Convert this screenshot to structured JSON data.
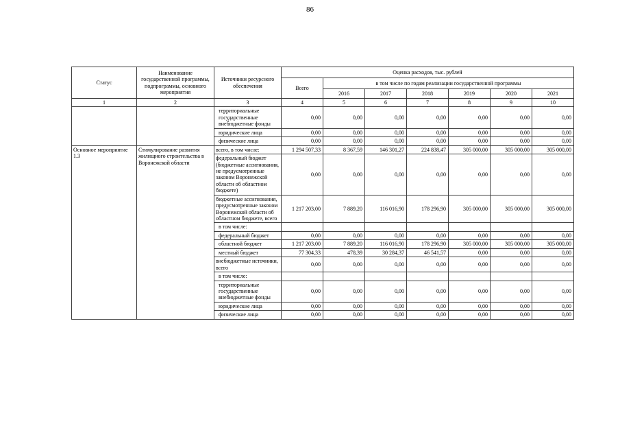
{
  "page": {
    "number": "86"
  },
  "table": {
    "header": {
      "status": "Статус",
      "name": "Наименование государственной программы, подпрограммы, основного мероприятия",
      "sources": "Источники ресурсного обеспечения",
      "expenses": "Оценка расходов, тыс. рублей",
      "total": "Всего",
      "by_years": "в том числе по годам реализации государственной программы",
      "years": [
        "2016",
        "2017",
        "2018",
        "2019",
        "2020",
        "2021"
      ],
      "col_numbers": [
        "1",
        "2",
        "3",
        "4",
        "5",
        "6",
        "7",
        "8",
        "9",
        "10"
      ]
    },
    "rows": [
      {
        "lead": {
          "status": "",
          "name": "",
          "rowspan": 3
        },
        "source": "территориальные государственные внебюджетные фонды",
        "indent": 1,
        "values": [
          "0,00",
          "0,00",
          "0,00",
          "0,00",
          "0,00",
          "0,00",
          "0,00"
        ]
      },
      {
        "source": "юридические лица",
        "indent": 1,
        "values": [
          "0,00",
          "0,00",
          "0,00",
          "0,00",
          "0,00",
          "0,00",
          "0,00"
        ]
      },
      {
        "source": "физические лица",
        "indent": 1,
        "values": [
          "0,00",
          "0,00",
          "0,00",
          "0,00",
          "0,00",
          "0,00",
          "0,00"
        ]
      },
      {
        "lead": {
          "status": "Основное мероприятие 1.3",
          "name": "Стимулирование развития жилищного строительства в Воронежской области",
          "rowspan": 12
        },
        "source": "всего, в том числе:",
        "indent": 0,
        "values": [
          "1 294 507,33",
          "8 367,59",
          "146 301,27",
          "224 838,47",
          "305 000,00",
          "305 000,00",
          "305 000,00"
        ]
      },
      {
        "source": "федеральный бюджет (бюджетные ассигнования, не предусмотренные законом Воронежской области об областном бюджете)",
        "indent": 0,
        "values": [
          "0,00",
          "0,00",
          "0,00",
          "0,00",
          "0,00",
          "0,00",
          "0,00"
        ]
      },
      {
        "source": "бюджетные ассигнования, предусмотренные законом Воронежской области об областном бюджете, всего",
        "indent": 0,
        "values": [
          "1 217 203,00",
          "7 889,20",
          "116 016,90",
          "178 296,90",
          "305 000,00",
          "305 000,00",
          "305 000,00"
        ]
      },
      {
        "source": "в том числе:",
        "indent": 1,
        "values": [
          "",
          "",
          "",
          "",
          "",
          "",
          ""
        ]
      },
      {
        "source": "федеральный бюджет",
        "indent": 1,
        "values": [
          "0,00",
          "0,00",
          "0,00",
          "0,00",
          "0,00",
          "0,00",
          "0,00"
        ]
      },
      {
        "source": "областной бюджет",
        "indent": 1,
        "values": [
          "1 217 203,00",
          "7 889,20",
          "116 016,90",
          "178 296,90",
          "305 000,00",
          "305 000,00",
          "305 000,00"
        ]
      },
      {
        "source": "местный бюджет",
        "indent": 1,
        "values": [
          "77 304,33",
          "478,39",
          "30 284,37",
          "46 541,57",
          "0,00",
          "0,00",
          "0,00"
        ]
      },
      {
        "source": "внебюджетные источники, всего",
        "indent": 0,
        "values": [
          "0,00",
          "0,00",
          "0,00",
          "0,00",
          "0,00",
          "0,00",
          "0,00"
        ]
      },
      {
        "source": "в том числе:",
        "indent": 1,
        "values": [
          "",
          "",
          "",
          "",
          "",
          "",
          ""
        ]
      },
      {
        "source": "территориальные государственные внебюджетные фонды",
        "indent": 1,
        "values": [
          "0,00",
          "0,00",
          "0,00",
          "0,00",
          "0,00",
          "0,00",
          "0,00"
        ]
      },
      {
        "source": "юридические лица",
        "indent": 1,
        "values": [
          "0,00",
          "0,00",
          "0,00",
          "0,00",
          "0,00",
          "0,00",
          "0,00"
        ]
      },
      {
        "source": "физические лица",
        "indent": 1,
        "values": [
          "0,00",
          "0,00",
          "0,00",
          "0,00",
          "0,00",
          "0,00",
          "0,00"
        ]
      }
    ]
  }
}
